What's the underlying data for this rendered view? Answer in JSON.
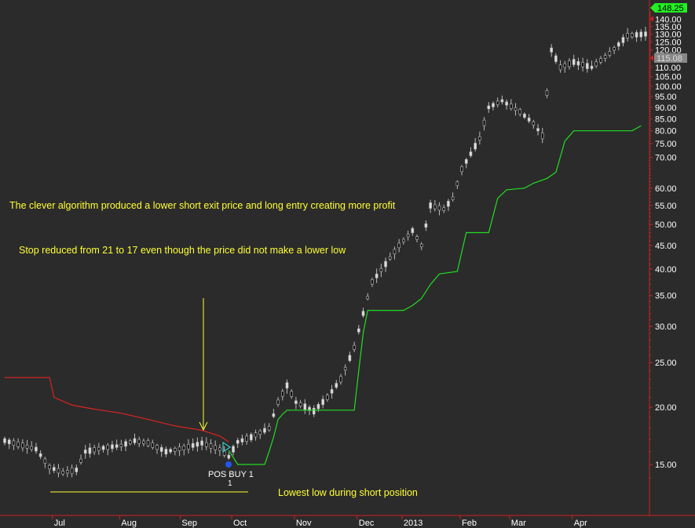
{
  "chart_data": {
    "type": "candlestick",
    "yscale": "log",
    "ylim": [
      13,
      150
    ],
    "x_labels": [
      "Jul",
      "Aug",
      "Sep",
      "Oct",
      "Nov",
      "Dec",
      "2013",
      "Feb",
      "Mar",
      "Apr"
    ],
    "y_ticks": [
      15,
      20,
      25,
      30,
      35,
      40,
      45,
      50,
      55,
      60,
      70,
      75,
      80,
      85,
      90,
      95,
      100,
      105,
      110,
      115,
      120,
      125,
      130,
      135,
      140
    ],
    "y_tick_labels": [
      "15.00",
      "20.00",
      "25.00",
      "30.00",
      "35.00",
      "40.00",
      "45.00",
      "50.00",
      "55.00",
      "60.00",
      "70.00",
      "75.00",
      "80.00",
      "85.00",
      "90.00",
      "95.00",
      "100.00",
      "105.00",
      "110.00",
      "115.00",
      "120.00",
      "125.00",
      "130.00",
      "135.00",
      "140.00"
    ],
    "last_price_label": "148.25",
    "stop_price_label": "115.08",
    "annotations": [
      "The clever algorithm produced a lower short exit price and long entry creating more profit",
      "Stop reduced from 21 to 17 even though the price did not make a lower low",
      "Lowest low during short position"
    ],
    "signal_label": "POS BUY 1",
    "signal_count": "1",
    "colors": {
      "background": "#2b2b2b",
      "axis": "#cc2222",
      "short_stop": "#dd2222",
      "long_stop": "#22dd22",
      "annotation": "#ffff33",
      "candle_up": "#dddddd",
      "candle_down": "#111111"
    },
    "long_stop_series": [
      [
        100,
        16.1
      ],
      [
        104,
        15.0
      ],
      [
        106,
        15.0
      ],
      [
        108,
        15.0
      ],
      [
        116,
        15.0
      ],
      [
        118,
        16.0
      ],
      [
        120,
        17.2
      ],
      [
        122,
        18.8
      ],
      [
        124,
        19.3
      ],
      [
        126,
        19.7
      ],
      [
        128,
        19.7
      ],
      [
        156,
        19.7
      ],
      [
        158,
        24.0
      ],
      [
        160,
        29.0
      ],
      [
        162,
        32.5
      ],
      [
        178,
        32.5
      ],
      [
        182,
        33.3
      ],
      [
        186,
        34.5
      ],
      [
        190,
        37.0
      ],
      [
        194,
        39.0
      ],
      [
        202,
        39.5
      ],
      [
        206,
        48.0
      ],
      [
        216,
        48.0
      ],
      [
        220,
        57.0
      ],
      [
        224,
        59.5
      ],
      [
        232,
        60.0
      ],
      [
        236,
        61.5
      ],
      [
        242,
        63.0
      ],
      [
        246,
        65.0
      ],
      [
        250,
        76.0
      ],
      [
        254,
        80.0
      ],
      [
        280,
        80.0
      ],
      [
        284,
        82.0
      ]
    ],
    "short_stop_series": [
      [
        0,
        23.2
      ],
      [
        20,
        23.2
      ],
      [
        22,
        21.0
      ],
      [
        30,
        20.2
      ],
      [
        40,
        19.8
      ],
      [
        52,
        19.4
      ],
      [
        64,
        18.8
      ],
      [
        76,
        18.2
      ],
      [
        88,
        17.8
      ],
      [
        96,
        17.3
      ],
      [
        100,
        16.8
      ]
    ]
  }
}
